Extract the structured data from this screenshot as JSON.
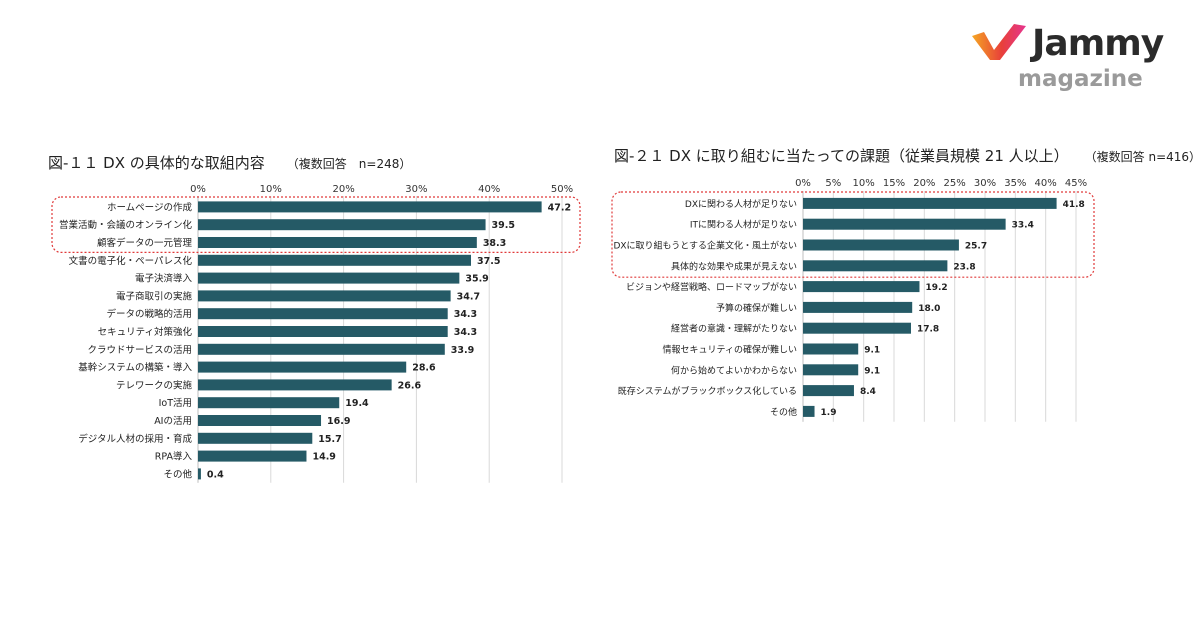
{
  "brand": {
    "name": "Jammy",
    "sub": "magazine",
    "colors": {
      "orange": "#f5a623",
      "red": "#e8403a",
      "pink": "#e5358f"
    }
  },
  "chart_data": [
    {
      "type": "bar",
      "orientation": "horizontal",
      "title": "図-１１ DX の具体的な取組内容",
      "note": "（複数回答　n=248）",
      "bar_color": "#255a66",
      "xlim": [
        0,
        50
      ],
      "ticks": [
        "0%",
        "10%",
        "20%",
        "30%",
        "40%",
        "50%"
      ],
      "grid": true,
      "highlight": "top 3 categories enclosed by red dotted box",
      "categories": [
        "ホームページの作成",
        "営業活動・会議のオンライン化",
        "顧客データの一元管理",
        "文書の電子化・ペーパレス化",
        "電子決済導入",
        "電子商取引の実施",
        "データの戦略的活用",
        "セキュリティ対策強化",
        "クラウドサービスの活用",
        "基幹システムの構築・導入",
        "テレワークの実施",
        "IoT活用",
        "AIの活用",
        "デジタル人材の採用・育成",
        "RPA導入",
        "その他"
      ],
      "values": [
        47.2,
        39.5,
        38.3,
        37.5,
        35.9,
        34.7,
        34.3,
        34.3,
        33.9,
        28.6,
        26.6,
        19.4,
        16.9,
        15.7,
        14.9,
        0.4
      ],
      "labels": [
        "47.2",
        "39.5",
        "38.3",
        "37.5",
        "35.9",
        "34.7",
        "34.3",
        "34.3",
        "33.9",
        "28.6",
        "26.6",
        "19.4",
        "16.9",
        "15.7",
        "14.9",
        "0.4"
      ]
    },
    {
      "type": "bar",
      "orientation": "horizontal",
      "title": "図-２１ DX に取り組むに当たっての課題（従業員規模 21 人以上）",
      "note": "（複数回答 n=416）",
      "bar_color": "#255a66",
      "xlim": [
        0,
        45
      ],
      "ticks": [
        "0%",
        "5%",
        "10%",
        "15%",
        "20%",
        "25%",
        "30%",
        "35%",
        "40%",
        "45%"
      ],
      "grid": true,
      "highlight": "top 4 categories enclosed by red dotted box",
      "categories": [
        "DXに関わる人材が足りない",
        "ITに関わる人材が足りない",
        "DXに取り組もうとする企業文化・風土がない",
        "具体的な効果や成果が見えない",
        "ビジョンや経営戦略、ロードマップがない",
        "予算の確保が難しい",
        "経営者の意識・理解がたりない",
        "情報セキュリティの確保が難しい",
        "何から始めてよいかわからない",
        "既存システムがブラックボックス化している",
        "その他"
      ],
      "values": [
        41.8,
        33.4,
        25.7,
        23.8,
        19.2,
        18.0,
        17.8,
        9.1,
        9.1,
        8.4,
        1.9
      ],
      "labels": [
        "41.8",
        "33.4",
        "25.7",
        "23.8",
        "19.2",
        "18.0",
        "17.8",
        "9.1",
        "9.1",
        "8.4",
        "1.9"
      ]
    }
  ]
}
